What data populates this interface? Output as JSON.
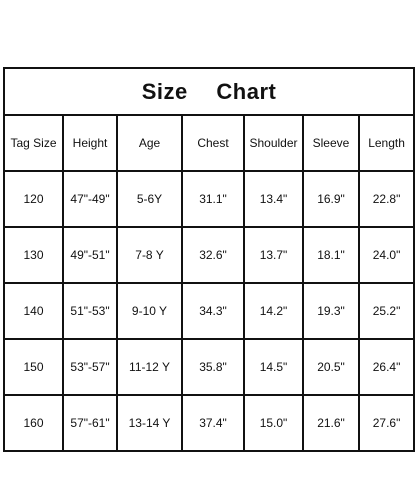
{
  "title": "Size Chart",
  "table": {
    "header": [
      "Tag Size",
      "Height",
      "Age",
      "Chest",
      "Shoulder",
      "Sleeve",
      "Length"
    ],
    "rows": [
      [
        "120",
        "47\"-49\"",
        "5-6Y",
        "31.1\"",
        "13.4\"",
        "16.9\"",
        "22.8\""
      ],
      [
        "130",
        "49\"-51\"",
        "7-8 Y",
        "32.6\"",
        "13.7\"",
        "18.1\"",
        "24.0\""
      ],
      [
        "140",
        "51\"-53\"",
        "9-10 Y",
        "34.3\"",
        "14.2\"",
        "19.3\"",
        "25.2\""
      ],
      [
        "150",
        "53\"-57\"",
        "11-12 Y",
        "35.8\"",
        "14.5\"",
        "20.5\"",
        "26.4\""
      ],
      [
        "160",
        "57\"-61\"",
        "13-14 Y",
        "37.4\"",
        "15.0\"",
        "21.6\"",
        "27.6\""
      ]
    ]
  }
}
